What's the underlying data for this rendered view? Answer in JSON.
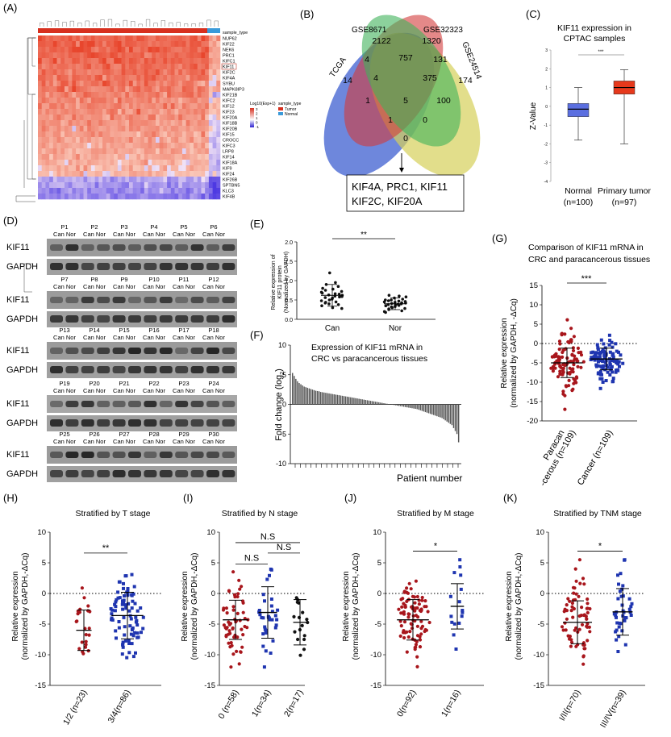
{
  "panel_labels": {
    "A": "(A)",
    "B": "(B)",
    "C": "(C)",
    "D": "(D)",
    "E": "(E)",
    "F": "(F)",
    "G": "(G)",
    "H": "(H)",
    "I": "(I)",
    "J": "(J)",
    "K": "(K)"
  },
  "colors": {
    "tumor": "#c0392b",
    "normal": "#3c7fc0",
    "red_dot": "#a8161c",
    "blue_dot": "#1f35b0",
    "box_normal": "#5b6fe0",
    "box_tumor": "#e6391c",
    "heat_high": "#e8502e",
    "heat_low": "#4e3ed0"
  },
  "heatmap": {
    "annotation_label": "sample_type",
    "genes": [
      "NUP62",
      "KIF22",
      "NEK6",
      "PRC1",
      "KIFC1",
      "KIF11",
      "KIF2C",
      "KIF4A",
      "SYBU",
      "MAPK8IP3",
      "KIF21B",
      "KIFC2",
      "KIF12",
      "KIF23",
      "KIF20A",
      "KIF18B",
      "KIF20B",
      "KIF15",
      "CROCC",
      "KIFC3",
      "LRP8",
      "KIF14",
      "KIF18A",
      "KIF9",
      "KIF24",
      "KIF26B",
      "SPTBN5",
      "KLC3",
      "KIF4B"
    ],
    "highlight_gene": "KIF11",
    "legend_title": "Log10(Exp+1)",
    "legend_ticks": [
      "3",
      "2",
      "1",
      "0",
      "-1"
    ],
    "sample_type_title": "sample_type",
    "sample_types": [
      "Tumor",
      "Normal"
    ]
  },
  "venn": {
    "sets": [
      "TCGA",
      "GSE8671",
      "GSE32323",
      "GSE24514"
    ],
    "counts": [
      "14",
      "2122",
      "1320",
      "174",
      "4",
      "757",
      "131",
      "4",
      "375",
      "1",
      "5",
      "100",
      "1",
      "0",
      "0"
    ],
    "genes_line1": "KIF4A, PRC1, KIF11",
    "genes_line2": "KIF2C,  KIF20A"
  },
  "panel_c": {
    "title_line1": "KIF11 expression in",
    "title_line2": "CPTAC samples",
    "ylabel": "Z-Value",
    "significance": "***",
    "yticks": [
      "3",
      "2",
      "1",
      "0",
      "-1",
      "-2",
      "-3",
      "-4"
    ],
    "groups": [
      {
        "name": "Normal",
        "n": "(n=100)"
      },
      {
        "name": "Primary tumor",
        "n": "(n=97)"
      }
    ]
  },
  "western": {
    "pairs": [
      [
        "P1",
        "P2",
        "P3",
        "P4",
        "P5",
        "P6"
      ],
      [
        "P7",
        "P8",
        "P9",
        "P10",
        "P11",
        "P12"
      ],
      [
        "P13",
        "P14",
        "P15",
        "P16",
        "P17",
        "P18"
      ],
      [
        "P19",
        "P20",
        "P21",
        "P22",
        "P23",
        "P24"
      ],
      [
        "P25",
        "P26",
        "P27",
        "P28",
        "P29",
        "P30"
      ]
    ],
    "lane_label": "Can Nor",
    "target": "KIF11",
    "control": "GAPDH"
  },
  "panel_e": {
    "ylabel_line1": "Relative expression of",
    "ylabel_line2": "KIF11 protein",
    "ylabel_line3": "(Normalized by GAPDH)",
    "yticks": [
      "2.0",
      "1.5",
      "1.0",
      "0.5",
      "0.0"
    ],
    "categories": [
      "Can",
      "Nor"
    ],
    "significance": "**"
  },
  "panel_f": {
    "title_line1": "Expression of KIF11 mRNA in",
    "title_line2": "CRC vs paracancerous tissues",
    "ylabel": "Fold change  (log",
    "ylabel_sub": "2",
    "ylabel_end": ")",
    "yticks": [
      "10",
      "5",
      "0",
      "-5",
      "-10"
    ],
    "xlabel": "Patient number"
  },
  "panel_g": {
    "title_line1": "Comparison of KIF11 mRNA in",
    "title_line2": "CRC and paracancerous tissues",
    "ylabel_line1": "Relative expression",
    "ylabel_line2": "(normalized by GAPDH, -ΔCq)",
    "yticks": [
      "15",
      "10",
      "5",
      "0",
      "-5",
      "-10",
      "-15",
      "-20"
    ],
    "significance": "***",
    "cat1_line1": "Paracan",
    "cat1_line2": "-cerous (n=109)",
    "cat2": "Cancer (n=109)"
  },
  "bottom_ylabel_line1": "Relative expression",
  "bottom_ylabel_line2": "(normalized by GAPDH,-ΔCq)",
  "bottom_yticks": [
    "10",
    "5",
    "0",
    "-5",
    "-10",
    "-15"
  ],
  "panel_h": {
    "title": "Stratified by T stage",
    "significance": "**",
    "categories": [
      "1/2 (n=23)",
      "3/4(n=86)"
    ]
  },
  "panel_i": {
    "title": "Stratified by N stage",
    "sig_top": "N.S",
    "sig_left": "N.S",
    "sig_right": "N.S",
    "categories": [
      "0 (n=58)",
      "1(n=34)",
      "2(n=17)"
    ]
  },
  "panel_j": {
    "title": "Stratified by M stage",
    "significance": "*",
    "categories": [
      "0(n=92)",
      "1(n=16)"
    ]
  },
  "panel_k": {
    "title": "Stratified by TNM stage",
    "significance": "*",
    "categories": [
      "I/II(n=70)",
      "III/IV(n=39)"
    ]
  },
  "chart_data": [
    {
      "type": "heatmap",
      "title": "",
      "legend": "Log10(Exp+1)",
      "rows": [
        "NUP62",
        "KIF22",
        "NEK6",
        "PRC1",
        "KIFC1",
        "KIF11",
        "KIF2C",
        "KIF4A",
        "SYBU",
        "MAPK8IP3",
        "KIF21B",
        "KIFC2",
        "KIF12",
        "KIF23",
        "KIF20A",
        "KIF18B",
        "KIF20B",
        "KIF15",
        "CROCC",
        "KIFC3",
        "LRP8",
        "KIF14",
        "KIF18A",
        "KIF9",
        "KIF24",
        "KIF26B",
        "SPTBN5",
        "KLC3",
        "KIF4B"
      ],
      "value_range": [
        -1,
        3
      ]
    },
    {
      "type": "box",
      "title": "KIF11 expression in CPTAC samples",
      "ylabel": "Z-Value",
      "ylim": [
        -4,
        3
      ],
      "groups": [
        {
          "name": "Normal",
          "n": 100,
          "min": -1.8,
          "q1": -0.55,
          "median": -0.15,
          "q3": 0.15,
          "max": 1.0
        },
        {
          "name": "Primary tumor",
          "n": 97,
          "min": -2.0,
          "q1": 0.65,
          "median": 1.0,
          "q3": 1.35,
          "max": 1.95
        }
      ]
    },
    {
      "type": "scatter",
      "title": "KIF11 protein",
      "ylabel": "Relative expression of KIF11 protein (Normalized by GAPDH)",
      "ylim": [
        0,
        2
      ],
      "categories": [
        "Can",
        "Nor"
      ],
      "series": [
        {
          "name": "Can",
          "mean": 0.62,
          "sd": 0.28,
          "values": [
            0.35,
            0.42,
            0.5,
            0.55,
            0.6,
            0.65,
            0.72,
            0.8,
            0.9,
            1.2,
            0.3,
            0.45,
            0.58,
            0.62,
            0.7,
            0.75,
            0.4,
            0.52,
            0.66,
            0.85,
            0.28,
            0.48,
            0.56,
            0.63,
            0.78,
            0.95,
            0.38,
            0.59,
            0.68,
            0.44
          ]
        },
        {
          "name": "Nor",
          "mean": 0.4,
          "sd": 0.15,
          "values": [
            0.2,
            0.25,
            0.3,
            0.33,
            0.36,
            0.4,
            0.42,
            0.45,
            0.48,
            0.5,
            0.55,
            0.6,
            0.22,
            0.28,
            0.35,
            0.38,
            0.41,
            0.44,
            0.47,
            0.52,
            0.58,
            0.18,
            0.27,
            0.32,
            0.37,
            0.39,
            0.43,
            0.46,
            0.5,
            0.62
          ]
        }
      ]
    },
    {
      "type": "bar",
      "title": "Expression of KIF11 mRNA in CRC vs paracancerous tissues",
      "ylabel": "Fold change (log2)",
      "xlabel": "Patient number",
      "ylim": [
        -10,
        10
      ],
      "values": [
        5.3,
        4.8,
        4.3,
        3.9,
        3.6,
        3.4,
        3.2,
        3.0,
        2.9,
        2.8,
        2.7,
        2.6,
        2.5,
        2.4,
        2.3,
        2.25,
        2.2,
        2.1,
        2.05,
        2.0,
        1.95,
        1.9,
        1.85,
        1.8,
        1.75,
        1.7,
        1.65,
        1.6,
        1.55,
        1.5,
        1.45,
        1.4,
        1.35,
        1.3,
        1.25,
        1.2,
        1.15,
        1.1,
        1.05,
        1.0,
        0.95,
        0.9,
        0.85,
        0.8,
        0.75,
        0.7,
        0.65,
        0.6,
        0.55,
        0.5,
        0.45,
        0.4,
        0.35,
        0.3,
        0.25,
        0.2,
        0.15,
        0.1,
        0.05,
        0.0,
        -0.05,
        -0.1,
        -0.15,
        -0.2,
        -0.25,
        -0.3,
        -0.35,
        -0.4,
        -0.45,
        -0.5,
        -0.55,
        -0.6,
        -0.65,
        -0.7,
        -0.75,
        -0.8,
        -0.9,
        -1.0,
        -1.1,
        -1.2,
        -1.3,
        -1.4,
        -1.5,
        -1.6,
        -1.7,
        -1.8,
        -1.9,
        -2.0,
        -2.1,
        -2.2,
        -2.3,
        -2.5,
        -2.7,
        -2.9,
        -3.1,
        -3.3,
        -3.5,
        -4.0,
        -4.5,
        -5.0,
        -6.4
      ]
    },
    {
      "type": "scatter",
      "title": "Comparison of KIF11 mRNA in CRC and paracancerous tissues",
      "ylim": [
        -20,
        15
      ],
      "categories": [
        "Paracan-cerous (n=109)",
        "Cancer (n=109)"
      ],
      "series": [
        {
          "name": "Paracancerous",
          "mean": -5.0,
          "sd": 3.8,
          "n": 109
        },
        {
          "name": "Cancer",
          "mean": -4.0,
          "sd": 2.8,
          "n": 109
        }
      ]
    },
    {
      "type": "scatter",
      "title": "Stratified by T stage",
      "ylim": [
        -15,
        10
      ],
      "categories": [
        "1/2 (n=23)",
        "3/4(n=86)"
      ],
      "series": [
        {
          "name": "1/2",
          "mean": -6.0,
          "sd": 3.3,
          "n": 23
        },
        {
          "name": "3/4",
          "mean": -3.6,
          "sd": 3.8,
          "n": 86
        }
      ]
    },
    {
      "type": "scatter",
      "title": "Stratified by N stage",
      "ylim": [
        -15,
        10
      ],
      "categories": [
        "0 (n=58)",
        "1(n=34)",
        "2(n=17)"
      ],
      "series": [
        {
          "name": "0",
          "mean": -4.3,
          "sd": 3.2,
          "n": 58
        },
        {
          "name": "1",
          "mean": -3.1,
          "sd": 4.2,
          "n": 34
        },
        {
          "name": "2",
          "mean": -4.7,
          "sd": 3.7,
          "n": 17
        }
      ]
    },
    {
      "type": "scatter",
      "title": "Stratified by M stage",
      "ylim": [
        -15,
        10
      ],
      "categories": [
        "0(n=92)",
        "1(n=16)"
      ],
      "series": [
        {
          "name": "0",
          "mean": -4.3,
          "sd": 3.3,
          "n": 92
        },
        {
          "name": "1",
          "mean": -2.1,
          "sd": 3.7,
          "n": 16
        }
      ]
    },
    {
      "type": "scatter",
      "title": "Stratified by TNM stage",
      "ylim": [
        -15,
        10
      ],
      "categories": [
        "I/II(n=70)",
        "III/IV(n=39)"
      ],
      "series": [
        {
          "name": "I/II",
          "mean": -4.7,
          "sd": 3.5,
          "n": 70
        },
        {
          "name": "III/IV",
          "mean": -3.0,
          "sd": 3.8,
          "n": 39
        }
      ]
    }
  ]
}
